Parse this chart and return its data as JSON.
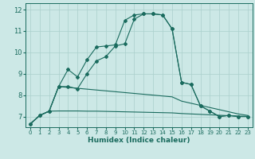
{
  "xlabel": "Humidex (Indice chaleur)",
  "background_color": "#cce8e6",
  "line_color": "#1a6b5e",
  "grid_color": "#aacfcc",
  "xlim": [
    -0.5,
    23.5
  ],
  "ylim": [
    6.5,
    12.3
  ],
  "yticks": [
    7,
    8,
    9,
    10,
    11,
    12
  ],
  "xticks": [
    0,
    1,
    2,
    3,
    4,
    5,
    6,
    7,
    8,
    9,
    10,
    11,
    12,
    13,
    14,
    15,
    16,
    17,
    18,
    19,
    20,
    21,
    22,
    23
  ],
  "curve1_x": [
    0,
    1,
    2,
    3,
    4,
    5,
    6,
    7,
    8,
    9,
    10,
    11,
    12,
    13,
    14,
    15,
    16,
    17,
    18,
    19,
    20,
    21,
    22,
    23
  ],
  "curve1_y": [
    6.65,
    7.05,
    7.25,
    8.4,
    9.2,
    8.85,
    9.65,
    10.25,
    10.3,
    10.35,
    11.5,
    11.75,
    11.8,
    11.8,
    11.75,
    11.1,
    8.6,
    8.5,
    7.5,
    7.25,
    7.0,
    7.05,
    7.0,
    7.0
  ],
  "curve2_x": [
    0,
    1,
    2,
    3,
    4,
    5,
    6,
    7,
    8,
    9,
    10,
    11,
    12,
    13,
    14,
    15,
    16,
    17,
    18,
    19,
    20,
    21,
    22,
    23
  ],
  "curve2_y": [
    6.65,
    7.05,
    7.25,
    8.4,
    8.4,
    8.3,
    9.0,
    9.6,
    9.8,
    10.3,
    10.4,
    11.55,
    11.8,
    11.8,
    11.75,
    11.1,
    8.6,
    8.5,
    7.5,
    7.25,
    7.0,
    7.05,
    7.0,
    7.0
  ],
  "line3_x": [
    0,
    1,
    2,
    3,
    4,
    5,
    6,
    7,
    8,
    9,
    10,
    11,
    12,
    13,
    14,
    15,
    16,
    17,
    18,
    19,
    20,
    21,
    22,
    23
  ],
  "line3_y": [
    6.65,
    7.05,
    7.25,
    8.4,
    8.36,
    8.32,
    8.28,
    8.24,
    8.2,
    8.16,
    8.12,
    8.08,
    8.04,
    8.0,
    7.96,
    7.92,
    7.72,
    7.62,
    7.52,
    7.42,
    7.32,
    7.22,
    7.12,
    7.05
  ],
  "line4_x": [
    0,
    1,
    2,
    3,
    4,
    5,
    6,
    7,
    8,
    9,
    10,
    11,
    12,
    13,
    14,
    15,
    16,
    17,
    18,
    19,
    20,
    21,
    22,
    23
  ],
  "line4_y": [
    6.65,
    7.05,
    7.25,
    7.26,
    7.26,
    7.26,
    7.25,
    7.25,
    7.24,
    7.23,
    7.22,
    7.21,
    7.2,
    7.19,
    7.18,
    7.17,
    7.14,
    7.12,
    7.1,
    7.08,
    7.06,
    7.04,
    7.02,
    7.01
  ]
}
